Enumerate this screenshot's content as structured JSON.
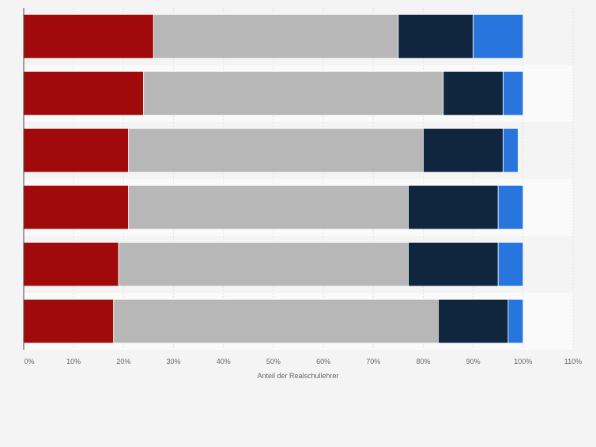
{
  "chart_data": {
    "type": "bar",
    "orientation": "horizontal",
    "stacked": true,
    "categories": [
      "",
      "",
      "",
      "",
      "",
      ""
    ],
    "series": [
      {
        "color": "#a10a0a",
        "values": [
          26,
          24,
          21,
          21,
          19,
          18
        ]
      },
      {
        "color": "#b7b7b7",
        "values": [
          49,
          60,
          59,
          56,
          58,
          65
        ]
      },
      {
        "color": "#0f263e",
        "values": [
          15,
          12,
          16,
          18,
          18,
          14
        ]
      },
      {
        "color": "#2876dd",
        "values": [
          10,
          4,
          3,
          5,
          5,
          3
        ]
      }
    ],
    "xlabel": "Anteil der Realschullehrer",
    "xlim": [
      0,
      110
    ],
    "x_ticks": [
      "0%",
      "10%",
      "20%",
      "30%",
      "40%",
      "50%",
      "60%",
      "70%",
      "80%",
      "90%",
      "100%",
      "110%"
    ],
    "grid": true,
    "legend": "none"
  }
}
